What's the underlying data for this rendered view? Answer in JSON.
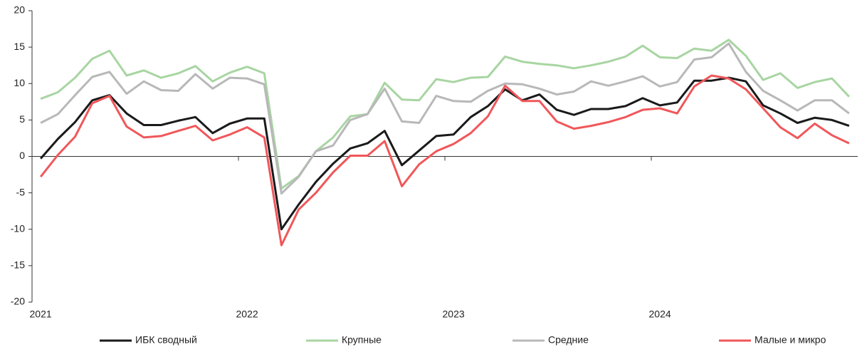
{
  "chart_data": {
    "type": "line",
    "categories": [
      "2021",
      null,
      null,
      null,
      null,
      null,
      null,
      null,
      null,
      null,
      null,
      null,
      "2022",
      null,
      null,
      null,
      null,
      null,
      null,
      null,
      null,
      null,
      null,
      null,
      "2023",
      null,
      null,
      null,
      null,
      null,
      null,
      null,
      null,
      null,
      null,
      null,
      "2024",
      null,
      null,
      null,
      null,
      null,
      null,
      null,
      null,
      null,
      null,
      null
    ],
    "series": [
      {
        "name": "ИБК сводный",
        "color": "#1a1a1a",
        "values": [
          -0.3,
          2.4,
          4.7,
          7.7,
          8.4,
          5.9,
          4.3,
          4.3,
          4.9,
          5.4,
          3.2,
          4.5,
          5.2,
          5.2,
          -10.0,
          -6.6,
          -3.5,
          -1.0,
          1.1,
          1.8,
          3.5,
          -1.2,
          0.8,
          2.8,
          3.0,
          5.4,
          6.9,
          9.2,
          7.7,
          8.5,
          6.4,
          5.7,
          6.5,
          6.5,
          6.9,
          8.0,
          7.0,
          7.4,
          10.4,
          10.4,
          10.8,
          10.3,
          7.0,
          5.9,
          4.6,
          5.3,
          5.0,
          4.2
        ]
      },
      {
        "name": "Крупные",
        "color": "#a8d5a2",
        "values": [
          7.9,
          8.8,
          10.8,
          13.4,
          14.5,
          11.1,
          11.8,
          10.8,
          11.4,
          12.4,
          10.3,
          11.5,
          12.3,
          11.4,
          -4.4,
          -2.7,
          0.7,
          2.6,
          5.5,
          5.8,
          10.1,
          7.8,
          7.7,
          10.6,
          10.2,
          10.8,
          10.9,
          13.7,
          13.0,
          12.7,
          12.5,
          12.1,
          12.5,
          13.0,
          13.7,
          15.2,
          13.6,
          13.5,
          14.8,
          14.5,
          16.0,
          13.8,
          10.5,
          11.4,
          9.4,
          10.2,
          10.7,
          8.2
        ]
      },
      {
        "name": "Средние",
        "color": "#b8b8b8",
        "values": [
          4.6,
          5.8,
          8.4,
          10.9,
          11.6,
          8.6,
          10.3,
          9.1,
          9.0,
          11.3,
          9.3,
          10.8,
          10.7,
          9.9,
          -5.1,
          -2.8,
          0.7,
          1.5,
          5.0,
          5.8,
          9.3,
          4.8,
          4.6,
          8.3,
          7.6,
          7.5,
          9.0,
          10.0,
          9.9,
          9.3,
          8.5,
          8.9,
          10.3,
          9.7,
          10.3,
          11.0,
          9.6,
          10.2,
          13.3,
          13.6,
          15.5,
          11.6,
          9.0,
          7.7,
          6.3,
          7.7,
          7.7,
          5.9
        ]
      },
      {
        "name": "Малые и микро",
        "color": "#f0575a",
        "values": [
          -2.8,
          0.2,
          2.7,
          7.3,
          8.3,
          4.1,
          2.6,
          2.8,
          3.5,
          4.2,
          2.2,
          3.0,
          4.0,
          2.6,
          -12.2,
          -7.3,
          -5.0,
          -2.2,
          0.1,
          0.1,
          2.1,
          -4.1,
          -1.1,
          0.7,
          1.7,
          3.2,
          5.5,
          9.7,
          7.6,
          7.6,
          4.8,
          3.8,
          4.2,
          4.7,
          5.4,
          6.4,
          6.6,
          5.9,
          9.6,
          11.1,
          10.7,
          9.2,
          6.6,
          4.0,
          2.5,
          4.5,
          2.9,
          1.8
        ]
      }
    ],
    "ylim": [
      -20,
      20
    ],
    "yticks": [
      -20,
      -15,
      -10,
      -5,
      0,
      5,
      10,
      15,
      20
    ],
    "grid": false,
    "legend": "bottom"
  }
}
